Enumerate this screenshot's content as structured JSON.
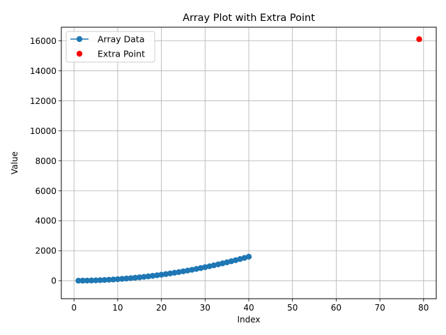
{
  "chart_data": {
    "type": "scatter",
    "title": "Array Plot with Extra Point",
    "xlabel": "Index",
    "ylabel": "Value",
    "xlim": [
      -2.9,
      82.9
    ],
    "ylim": [
      -1200,
      16900
    ],
    "x_ticks": [
      0,
      10,
      20,
      30,
      40,
      50,
      60,
      70,
      80
    ],
    "x_tick_labels": [
      "0",
      "10",
      "20",
      "30",
      "40",
      "50",
      "60",
      "70",
      "80"
    ],
    "y_ticks": [
      0,
      2000,
      4000,
      6000,
      8000,
      10000,
      12000,
      14000,
      16000
    ],
    "y_tick_labels": [
      "0",
      "2000",
      "4000",
      "6000",
      "8000",
      "10000",
      "12000",
      "14000",
      "16000"
    ],
    "grid": true,
    "legend_position": "upper-left",
    "series": [
      {
        "name": "Array Data",
        "style": "line-marker",
        "color": "#1f77b4",
        "x": [
          1,
          2,
          3,
          4,
          5,
          6,
          7,
          8,
          9,
          10,
          11,
          12,
          13,
          14,
          15,
          16,
          17,
          18,
          19,
          20,
          21,
          22,
          23,
          24,
          25,
          26,
          27,
          28,
          29,
          30,
          31,
          32,
          33,
          34,
          35,
          36,
          37,
          38,
          39,
          40
        ],
        "y": [
          1,
          4,
          9,
          16,
          25,
          36,
          49,
          64,
          81,
          100,
          121,
          144,
          169,
          196,
          225,
          256,
          289,
          324,
          361,
          400,
          441,
          484,
          529,
          576,
          625,
          676,
          729,
          784,
          841,
          900,
          961,
          1024,
          1089,
          1156,
          1225,
          1296,
          1369,
          1444,
          1521,
          1600
        ]
      },
      {
        "name": "Extra Point",
        "style": "marker",
        "color": "#ff0000",
        "x": [
          79
        ],
        "y": [
          16100
        ]
      }
    ]
  }
}
